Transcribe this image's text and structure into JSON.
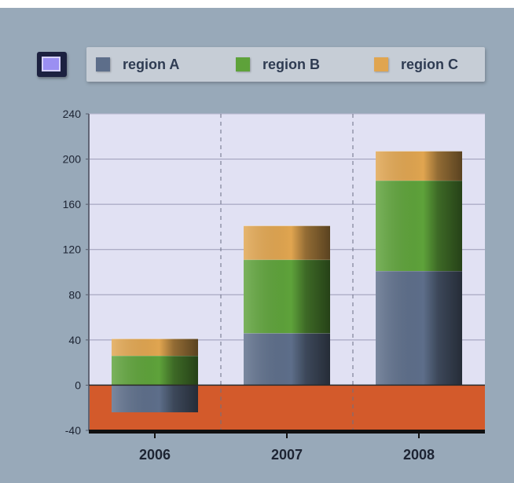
{
  "chart_data": {
    "type": "bar",
    "stacked": true,
    "categories": [
      "2006",
      "2007",
      "2008"
    ],
    "series": [
      {
        "name": "region A",
        "color": "#5d6e8a",
        "values": [
          -24,
          46,
          101
        ]
      },
      {
        "name": "region B",
        "color": "#5ea23a",
        "values": [
          26,
          65,
          80
        ]
      },
      {
        "name": "region C",
        "color": "#e0a550",
        "values": [
          15,
          30,
          26
        ]
      }
    ],
    "title": "",
    "xlabel": "",
    "ylabel": "",
    "ylim": [
      -40,
      240
    ],
    "yticks": [
      -40,
      0,
      40,
      80,
      120,
      160,
      200,
      240
    ],
    "grid": true,
    "legend_position": "top",
    "negative_region_color": "#d35a2b",
    "plot_background": "#e1e1f3"
  }
}
